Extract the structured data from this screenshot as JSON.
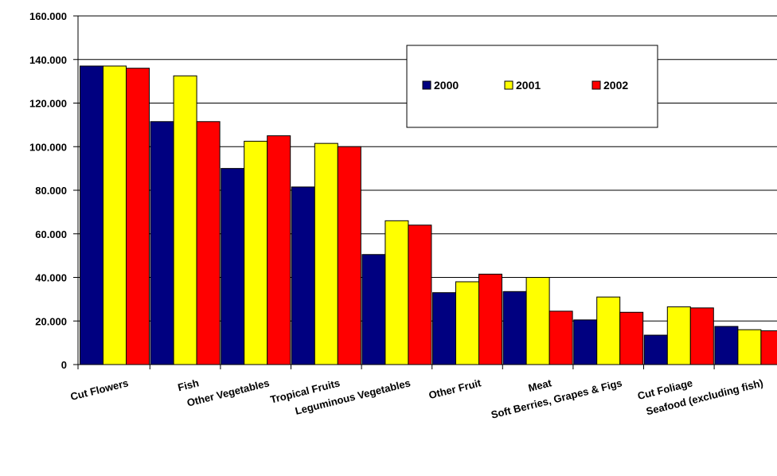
{
  "chart_data": {
    "type": "bar",
    "title": "",
    "xlabel": "",
    "ylabel": "",
    "ylim": [
      0,
      160000
    ],
    "y_ticks": [
      "0",
      "20.000",
      "40.000",
      "60.000",
      "80.000",
      "100.000",
      "120.000",
      "140.000",
      "160.000"
    ],
    "grid": "horizontal",
    "legend_position": "top-right",
    "categories": [
      "Cut Flowers",
      "Fish",
      "Other Vegetables",
      "Tropical Fruits",
      "Leguminous Vegetables",
      "Other Fruit",
      "Meat",
      "Soft Berries, Grapes & Figs",
      "Cut Foliage",
      "Seafood (excluding fish)"
    ],
    "series": [
      {
        "name": "2000",
        "color": "#000080",
        "values": [
          137000,
          111500,
          90000,
          81500,
          50500,
          33000,
          33500,
          20500,
          13500,
          17500
        ]
      },
      {
        "name": "2001",
        "color": "#FFFF00",
        "values": [
          137000,
          132500,
          102500,
          101500,
          66000,
          38000,
          40000,
          31000,
          26500,
          16000
        ]
      },
      {
        "name": "2002",
        "color": "#FF0000",
        "values": [
          136000,
          111500,
          105000,
          100000,
          64000,
          41500,
          24500,
          24000,
          26000,
          15500
        ]
      }
    ]
  }
}
